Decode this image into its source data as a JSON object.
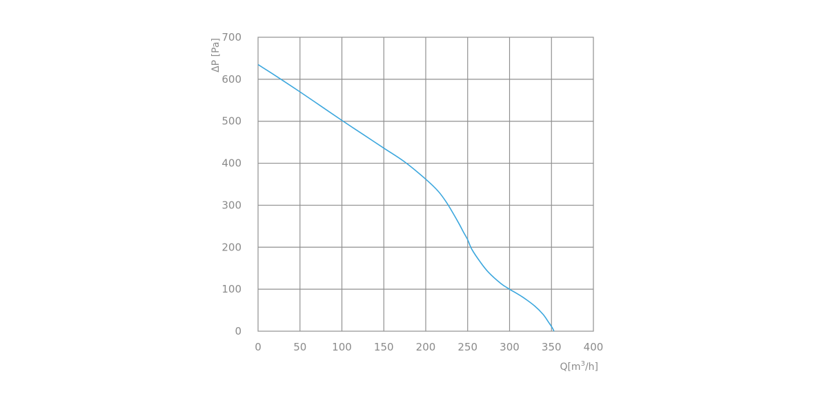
{
  "chart_data": {
    "type": "line",
    "xlabel": "Q[m",
    "xlabel_sup": "3",
    "xlabel_end": "/h]",
    "ylabel": "ΔP [Pa]",
    "xlim": [
      0,
      400
    ],
    "ylim": [
      0,
      700
    ],
    "x_ticks": [
      "0",
      "50",
      "100",
      "150",
      "200",
      "250",
      "300",
      "350",
      "400"
    ],
    "y_ticks": [
      "0",
      "100",
      "200",
      "300",
      "400",
      "500",
      "600",
      "700"
    ],
    "grid": true,
    "line_color": "#3aa6dd",
    "series": [
      {
        "x": [
          0,
          25,
          50,
          75,
          100,
          125,
          150,
          175,
          200,
          215,
          225,
          232,
          240,
          245,
          250,
          255,
          265,
          275,
          290,
          300,
          315,
          330,
          340,
          347,
          351,
          353
        ],
        "y": [
          635,
          603,
          570,
          536,
          502,
          469,
          436,
          403,
          362,
          333,
          306,
          283,
          255,
          236,
          218,
          195,
          165,
          140,
          113,
          100,
          82,
          60,
          40,
          20,
          8,
          0
        ]
      }
    ]
  }
}
